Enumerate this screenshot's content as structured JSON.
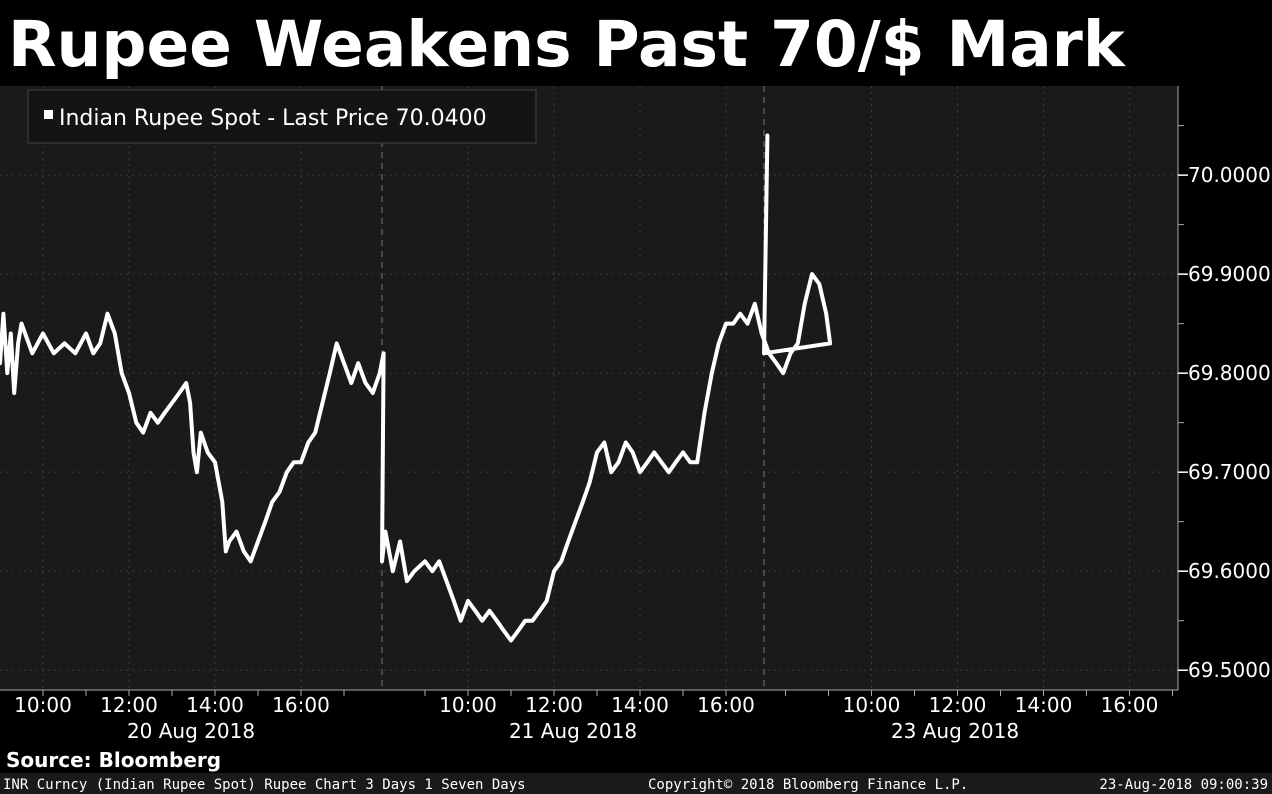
{
  "title": "Rupee Weakens Past 70/$ Mark",
  "legend_label": "Indian Rupee Spot - Last Price 70.0400",
  "source": "Source: Bloomberg",
  "footer_left": "INR Curncy (Indian Rupee Spot) Rupee Chart 3 Days 1 Seven Days",
  "footer_center": "Copyright© 2018 Bloomberg Finance L.P.",
  "footer_right": "23-Aug-2018 09:00:39",
  "colors": {
    "background": "#000000",
    "plot_background": "#1a1a1a",
    "line": "#ffffff",
    "grid": "#3a3a3a",
    "text": "#ffffff"
  },
  "chart_data": {
    "type": "line",
    "title": "Rupee Weakens Past 70/$ Mark",
    "ylim": [
      69.48,
      70.09
    ],
    "y_ticks": [
      "70.0000",
      "69.9000",
      "69.8000",
      "69.7000",
      "69.6000",
      "69.5000"
    ],
    "y_tick_values": [
      70.0,
      69.9,
      69.8,
      69.7,
      69.6,
      69.5
    ],
    "x_ticks": [
      {
        "label": "10:00",
        "day": 0,
        "hour": 10
      },
      {
        "label": "12:00",
        "day": 0,
        "hour": 12
      },
      {
        "label": "14:00",
        "day": 0,
        "hour": 14
      },
      {
        "label": "16:00",
        "day": 0,
        "hour": 16
      },
      {
        "label": "10:00",
        "day": 1,
        "hour": 10
      },
      {
        "label": "12:00",
        "day": 1,
        "hour": 12
      },
      {
        "label": "14:00",
        "day": 1,
        "hour": 14
      },
      {
        "label": "16:00",
        "day": 1,
        "hour": 16
      },
      {
        "label": "10:00",
        "day": 2,
        "hour": 10
      },
      {
        "label": "12:00",
        "day": 2,
        "hour": 12
      },
      {
        "label": "14:00",
        "day": 2,
        "hour": 14
      },
      {
        "label": "16:00",
        "day": 2,
        "hour": 16
      }
    ],
    "day_labels": [
      "20 Aug 2018",
      "21 Aug 2018",
      "23 Aug 2018"
    ],
    "grid": true,
    "legend_position": "top-left",
    "series": [
      {
        "name": "Indian Rupee Spot - Last Price 70.0400",
        "points": [
          [
            0,
            9.0,
            69.81
          ],
          [
            0,
            9.08,
            69.86
          ],
          [
            0,
            9.17,
            69.8
          ],
          [
            0,
            9.25,
            69.84
          ],
          [
            0,
            9.33,
            69.78
          ],
          [
            0,
            9.42,
            69.83
          ],
          [
            0,
            9.5,
            69.85
          ],
          [
            0,
            9.75,
            69.82
          ],
          [
            0,
            10.0,
            69.84
          ],
          [
            0,
            10.25,
            69.82
          ],
          [
            0,
            10.5,
            69.83
          ],
          [
            0,
            10.75,
            69.82
          ],
          [
            0,
            11.0,
            69.84
          ],
          [
            0,
            11.17,
            69.82
          ],
          [
            0,
            11.33,
            69.83
          ],
          [
            0,
            11.5,
            69.86
          ],
          [
            0,
            11.67,
            69.84
          ],
          [
            0,
            11.83,
            69.8
          ],
          [
            0,
            12.0,
            69.78
          ],
          [
            0,
            12.17,
            69.75
          ],
          [
            0,
            12.33,
            69.74
          ],
          [
            0,
            12.5,
            69.76
          ],
          [
            0,
            12.67,
            69.75
          ],
          [
            0,
            12.83,
            69.76
          ],
          [
            0,
            13.0,
            69.77
          ],
          [
            0,
            13.17,
            69.78
          ],
          [
            0,
            13.33,
            69.79
          ],
          [
            0,
            13.42,
            69.77
          ],
          [
            0,
            13.5,
            69.72
          ],
          [
            0,
            13.58,
            69.7
          ],
          [
            0,
            13.67,
            69.74
          ],
          [
            0,
            13.83,
            69.72
          ],
          [
            0,
            14.0,
            69.71
          ],
          [
            0,
            14.17,
            69.67
          ],
          [
            0,
            14.25,
            69.62
          ],
          [
            0,
            14.33,
            69.63
          ],
          [
            0,
            14.5,
            69.64
          ],
          [
            0,
            14.67,
            69.62
          ],
          [
            0,
            14.83,
            69.61
          ],
          [
            0,
            15.0,
            69.63
          ],
          [
            0,
            15.17,
            69.65
          ],
          [
            0,
            15.33,
            69.67
          ],
          [
            0,
            15.5,
            69.68
          ],
          [
            0,
            15.67,
            69.7
          ],
          [
            0,
            15.83,
            69.71
          ],
          [
            0,
            16.0,
            69.71
          ],
          [
            0,
            16.17,
            69.73
          ],
          [
            0,
            16.33,
            69.74
          ],
          [
            0,
            16.5,
            69.77
          ],
          [
            0,
            16.67,
            69.8
          ],
          [
            0,
            16.83,
            69.83
          ],
          [
            0,
            17.0,
            69.81
          ],
          [
            0,
            17.17,
            69.79
          ],
          [
            0,
            17.33,
            69.81
          ],
          [
            0,
            17.5,
            69.79
          ],
          [
            0,
            17.67,
            69.78
          ],
          [
            0,
            17.83,
            69.8
          ],
          [
            0,
            17.92,
            69.82
          ],
          [
            1,
            8.0,
            69.61
          ],
          [
            1,
            8.08,
            69.64
          ],
          [
            1,
            8.25,
            69.6
          ],
          [
            1,
            8.42,
            69.63
          ],
          [
            1,
            8.58,
            69.59
          ],
          [
            1,
            8.75,
            69.6
          ],
          [
            1,
            9.0,
            69.61
          ],
          [
            1,
            9.17,
            69.6
          ],
          [
            1,
            9.33,
            69.61
          ],
          [
            1,
            9.5,
            69.59
          ],
          [
            1,
            9.67,
            69.57
          ],
          [
            1,
            9.83,
            69.55
          ],
          [
            1,
            10.0,
            69.57
          ],
          [
            1,
            10.17,
            69.56
          ],
          [
            1,
            10.33,
            69.55
          ],
          [
            1,
            10.5,
            69.56
          ],
          [
            1,
            10.67,
            69.55
          ],
          [
            1,
            10.83,
            69.54
          ],
          [
            1,
            11.0,
            69.53
          ],
          [
            1,
            11.17,
            69.54
          ],
          [
            1,
            11.33,
            69.55
          ],
          [
            1,
            11.5,
            69.55
          ],
          [
            1,
            11.67,
            69.56
          ],
          [
            1,
            11.83,
            69.57
          ],
          [
            1,
            12.0,
            69.6
          ],
          [
            1,
            12.17,
            69.61
          ],
          [
            1,
            12.33,
            69.63
          ],
          [
            1,
            12.5,
            69.65
          ],
          [
            1,
            12.67,
            69.67
          ],
          [
            1,
            12.83,
            69.69
          ],
          [
            1,
            13.0,
            69.72
          ],
          [
            1,
            13.17,
            69.73
          ],
          [
            1,
            13.33,
            69.7
          ],
          [
            1,
            13.5,
            69.71
          ],
          [
            1,
            13.67,
            69.73
          ],
          [
            1,
            13.83,
            69.72
          ],
          [
            1,
            14.0,
            69.7
          ],
          [
            1,
            14.17,
            69.71
          ],
          [
            1,
            14.33,
            69.72
          ],
          [
            1,
            14.5,
            69.71
          ],
          [
            1,
            14.67,
            69.7
          ],
          [
            1,
            14.83,
            69.71
          ],
          [
            1,
            15.0,
            69.72
          ],
          [
            1,
            15.17,
            69.71
          ],
          [
            1,
            15.33,
            69.71
          ],
          [
            1,
            15.5,
            69.76
          ],
          [
            1,
            15.67,
            69.8
          ],
          [
            1,
            15.83,
            69.83
          ],
          [
            1,
            16.0,
            69.85
          ],
          [
            1,
            16.17,
            69.85
          ],
          [
            1,
            16.33,
            69.86
          ],
          [
            1,
            16.5,
            69.85
          ],
          [
            1,
            16.67,
            69.87
          ],
          [
            1,
            16.83,
            69.84
          ],
          [
            1,
            17.0,
            69.82
          ],
          [
            1,
            17.17,
            69.81
          ],
          [
            1,
            17.33,
            69.8
          ],
          [
            1,
            17.5,
            69.82
          ],
          [
            1,
            17.67,
            69.83
          ],
          [
            1,
            17.83,
            69.87
          ],
          [
            1,
            18.0,
            69.9
          ],
          [
            1,
            18.17,
            69.89
          ],
          [
            1,
            18.33,
            69.86
          ],
          [
            1,
            18.42,
            69.83
          ],
          [
            2,
            7.5,
            69.82
          ],
          [
            2,
            7.58,
            70.04
          ]
        ]
      }
    ]
  }
}
